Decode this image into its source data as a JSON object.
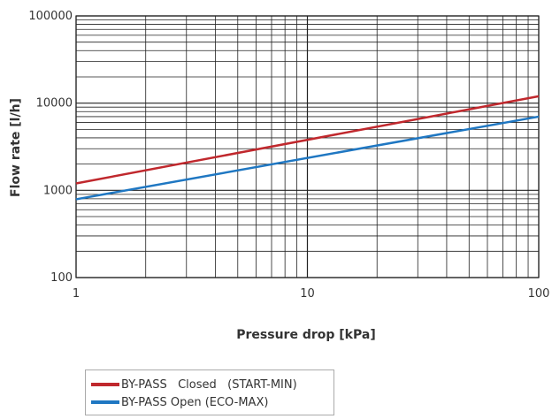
{
  "chart_data": {
    "type": "line",
    "x_scale": "log",
    "y_scale": "log",
    "xlim": [
      1,
      100
    ],
    "ylim": [
      100,
      100000
    ],
    "x_ticks": [
      "1",
      "10",
      "100"
    ],
    "y_ticks": [
      "100",
      "1000",
      "10000",
      "100000"
    ],
    "xlabel": "Pressure drop [kPa]",
    "ylabel": "Flow rate [l/h]",
    "grid": true,
    "legend_position": "bottom-left",
    "series": [
      {
        "name": "BY-PASS   Closed   (START-MIN)",
        "color": "#c0282d",
        "x": [
          1,
          100
        ],
        "y": [
          1200,
          12000
        ]
      },
      {
        "name": "BY-PASS Open (ECO-MAX)",
        "color": "#1f77c2",
        "x": [
          1,
          100
        ],
        "y": [
          790,
          7000
        ]
      }
    ]
  }
}
